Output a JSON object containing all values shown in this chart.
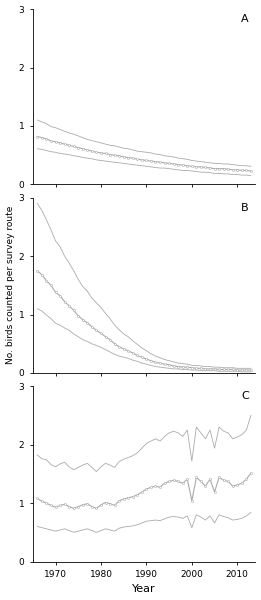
{
  "years": [
    1966,
    1967,
    1968,
    1969,
    1970,
    1971,
    1972,
    1973,
    1974,
    1975,
    1976,
    1977,
    1978,
    1979,
    1980,
    1981,
    1982,
    1983,
    1984,
    1985,
    1986,
    1987,
    1988,
    1989,
    1990,
    1991,
    1992,
    1993,
    1994,
    1995,
    1996,
    1997,
    1998,
    1999,
    2000,
    2001,
    2002,
    2003,
    2004,
    2005,
    2006,
    2007,
    2008,
    2009,
    2010,
    2011,
    2012,
    2013
  ],
  "panel_A": {
    "label": "A",
    "mid": [
      0.82,
      0.8,
      0.78,
      0.74,
      0.73,
      0.71,
      0.69,
      0.67,
      0.65,
      0.63,
      0.61,
      0.59,
      0.57,
      0.55,
      0.54,
      0.53,
      0.51,
      0.5,
      0.49,
      0.47,
      0.46,
      0.45,
      0.43,
      0.42,
      0.41,
      0.4,
      0.39,
      0.38,
      0.37,
      0.36,
      0.35,
      0.34,
      0.33,
      0.32,
      0.31,
      0.3,
      0.3,
      0.29,
      0.28,
      0.27,
      0.27,
      0.27,
      0.26,
      0.25,
      0.25,
      0.24,
      0.24,
      0.23
    ],
    "upper": [
      1.1,
      1.07,
      1.04,
      0.99,
      0.97,
      0.94,
      0.91,
      0.88,
      0.86,
      0.83,
      0.8,
      0.77,
      0.75,
      0.73,
      0.71,
      0.69,
      0.67,
      0.66,
      0.64,
      0.62,
      0.61,
      0.59,
      0.57,
      0.56,
      0.55,
      0.54,
      0.52,
      0.51,
      0.49,
      0.48,
      0.47,
      0.45,
      0.44,
      0.43,
      0.41,
      0.4,
      0.39,
      0.38,
      0.37,
      0.36,
      0.36,
      0.35,
      0.35,
      0.34,
      0.33,
      0.32,
      0.32,
      0.31
    ],
    "lower": [
      0.61,
      0.6,
      0.58,
      0.56,
      0.55,
      0.53,
      0.52,
      0.51,
      0.49,
      0.48,
      0.46,
      0.45,
      0.44,
      0.42,
      0.41,
      0.4,
      0.39,
      0.38,
      0.37,
      0.36,
      0.35,
      0.34,
      0.33,
      0.32,
      0.31,
      0.3,
      0.29,
      0.28,
      0.28,
      0.27,
      0.26,
      0.25,
      0.24,
      0.24,
      0.23,
      0.22,
      0.21,
      0.21,
      0.2,
      0.19,
      0.19,
      0.18,
      0.18,
      0.17,
      0.17,
      0.16,
      0.16,
      0.15
    ]
  },
  "panel_B": {
    "label": "B",
    "mid": [
      1.75,
      1.68,
      1.58,
      1.5,
      1.38,
      1.32,
      1.22,
      1.15,
      1.07,
      0.98,
      0.91,
      0.86,
      0.79,
      0.73,
      0.68,
      0.62,
      0.57,
      0.5,
      0.45,
      0.41,
      0.38,
      0.34,
      0.3,
      0.27,
      0.24,
      0.21,
      0.18,
      0.17,
      0.15,
      0.14,
      0.12,
      0.11,
      0.1,
      0.1,
      0.09,
      0.08,
      0.08,
      0.07,
      0.07,
      0.07,
      0.06,
      0.06,
      0.06,
      0.06,
      0.05,
      0.05,
      0.05,
      0.05
    ],
    "upper": [
      2.9,
      2.78,
      2.62,
      2.45,
      2.26,
      2.16,
      2.0,
      1.88,
      1.75,
      1.6,
      1.48,
      1.4,
      1.28,
      1.2,
      1.12,
      1.02,
      0.93,
      0.82,
      0.74,
      0.67,
      0.62,
      0.55,
      0.49,
      0.43,
      0.38,
      0.33,
      0.29,
      0.26,
      0.23,
      0.21,
      0.19,
      0.17,
      0.16,
      0.15,
      0.13,
      0.13,
      0.12,
      0.11,
      0.11,
      0.1,
      0.1,
      0.09,
      0.09,
      0.09,
      0.08,
      0.08,
      0.08,
      0.08
    ],
    "lower": [
      1.1,
      1.06,
      0.99,
      0.93,
      0.85,
      0.82,
      0.77,
      0.73,
      0.67,
      0.62,
      0.57,
      0.54,
      0.5,
      0.47,
      0.44,
      0.4,
      0.36,
      0.32,
      0.29,
      0.27,
      0.25,
      0.22,
      0.2,
      0.17,
      0.15,
      0.13,
      0.11,
      0.1,
      0.09,
      0.08,
      0.07,
      0.07,
      0.06,
      0.06,
      0.05,
      0.05,
      0.04,
      0.04,
      0.04,
      0.04,
      0.03,
      0.03,
      0.03,
      0.03,
      0.03,
      0.02,
      0.02,
      0.02
    ]
  },
  "panel_C": {
    "label": "C",
    "mid": [
      1.08,
      1.03,
      1.0,
      0.96,
      0.93,
      0.96,
      0.98,
      0.94,
      0.91,
      0.94,
      0.97,
      0.99,
      0.94,
      0.91,
      0.97,
      1.01,
      0.99,
      0.96,
      1.04,
      1.07,
      1.09,
      1.11,
      1.14,
      1.19,
      1.24,
      1.27,
      1.29,
      1.27,
      1.34,
      1.37,
      1.39,
      1.37,
      1.34,
      1.41,
      1.04,
      1.44,
      1.37,
      1.29,
      1.41,
      1.19,
      1.44,
      1.39,
      1.37,
      1.29,
      1.31,
      1.34,
      1.41,
      1.51
    ],
    "upper": [
      1.82,
      1.76,
      1.74,
      1.66,
      1.62,
      1.67,
      1.7,
      1.62,
      1.57,
      1.61,
      1.65,
      1.68,
      1.61,
      1.54,
      1.62,
      1.68,
      1.65,
      1.61,
      1.71,
      1.75,
      1.78,
      1.81,
      1.86,
      1.94,
      2.02,
      2.06,
      2.1,
      2.06,
      2.14,
      2.2,
      2.23,
      2.2,
      2.14,
      2.25,
      1.72,
      2.3,
      2.2,
      2.1,
      2.25,
      1.94,
      2.3,
      2.23,
      2.2,
      2.1,
      2.13,
      2.17,
      2.25,
      2.5
    ],
    "lower": [
      0.6,
      0.58,
      0.56,
      0.54,
      0.52,
      0.54,
      0.56,
      0.53,
      0.5,
      0.52,
      0.54,
      0.56,
      0.53,
      0.5,
      0.53,
      0.56,
      0.54,
      0.52,
      0.57,
      0.59,
      0.6,
      0.61,
      0.63,
      0.66,
      0.69,
      0.7,
      0.71,
      0.7,
      0.73,
      0.76,
      0.77,
      0.76,
      0.74,
      0.78,
      0.58,
      0.8,
      0.76,
      0.71,
      0.78,
      0.66,
      0.8,
      0.77,
      0.75,
      0.71,
      0.72,
      0.74,
      0.78,
      0.84
    ]
  },
  "line_color": "#aaaaaa",
  "mid_marker": "o",
  "mid_marker_size": 1.5,
  "mid_linewidth": 0.8,
  "band_linewidth": 0.6,
  "ylabel": "No. birds counted per survey route",
  "xlabel": "Year",
  "xticks": [
    1970,
    1980,
    1990,
    2000,
    2010
  ],
  "yticks": [
    0,
    1,
    2,
    3
  ],
  "ylim": [
    0,
    3
  ],
  "xlim": [
    1965,
    2014
  ],
  "figure_bg": "#ffffff",
  "axes_bg": "#ffffff"
}
